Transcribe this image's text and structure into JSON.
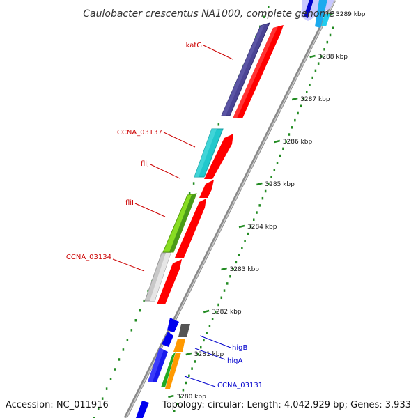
{
  "title": "Caulobacter crescentus NA1000, complete genome",
  "footer": {
    "accession": "Accession: NC_011916",
    "summary": "Topology: circular; Length: 4,042,929 bp; Genes: 3,933"
  },
  "ticks": [
    {
      "label": "3289 kbp",
      "pos": 3289
    },
    {
      "label": "3288 kbp",
      "pos": 3288
    },
    {
      "label": "3287 kbp",
      "pos": 3287
    },
    {
      "label": "3286 kbp",
      "pos": 3286
    },
    {
      "label": "3285 kbp",
      "pos": 3285
    },
    {
      "label": "3284 kbp",
      "pos": 3284
    },
    {
      "label": "3283 kbp",
      "pos": 3283
    },
    {
      "label": "3282 kbp",
      "pos": 3282
    },
    {
      "label": "3281 kbp",
      "pos": 3281
    },
    {
      "label": "3280 kbp",
      "pos": 3280
    }
  ],
  "labels": [
    {
      "text": "katG",
      "color": "#cc0000"
    },
    {
      "text": "CCNA_03137",
      "color": "#cc0000"
    },
    {
      "text": "fliJ",
      "color": "#cc0000"
    },
    {
      "text": "fliI",
      "color": "#cc0000"
    },
    {
      "text": "CCNA_03134",
      "color": "#cc0000"
    },
    {
      "text": "higB",
      "color": "#0000cc"
    },
    {
      "text": "higA",
      "color": "#0000cc"
    },
    {
      "text": "CCNA_03131",
      "color": "#0000cc"
    }
  ]
}
